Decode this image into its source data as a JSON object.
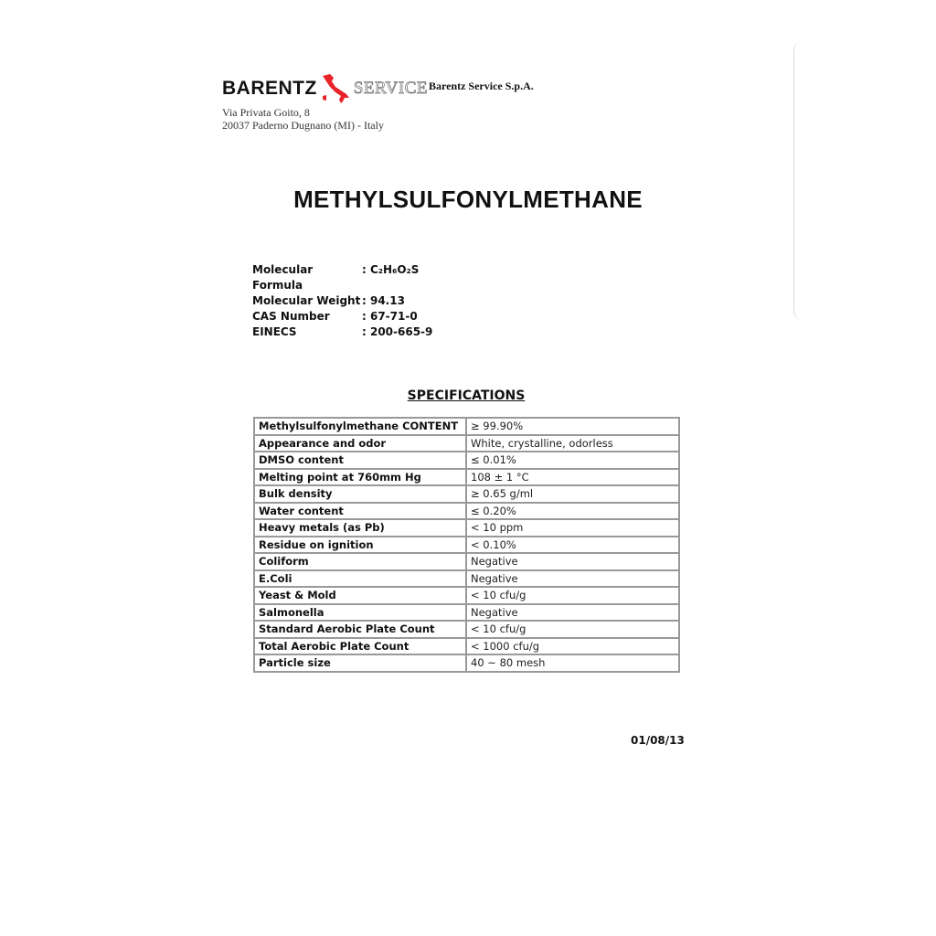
{
  "header": {
    "logo_text_left": "BARENTZ",
    "logo_text_right": "SERVICE",
    "company": "Barentz Service S.p.A.",
    "address_line1": "Via Privata Goito, 8",
    "address_line2": "20037 Paderno Dugnano (MI) - Italy",
    "logo_color": "#e8232a"
  },
  "title": "METHYLSULFONYLMETHANE",
  "properties": [
    {
      "label": "Molecular Formula",
      "value": ": C₂H₆O₂S"
    },
    {
      "label": "Molecular Weight",
      "value": ": 94.13"
    },
    {
      "label": "CAS Number",
      "value": ": 67-71-0"
    },
    {
      "label": "EINECS",
      "value": ": 200-665-9"
    }
  ],
  "specifications_heading": "SPECIFICATIONS",
  "specifications": [
    {
      "parameter": "Methylsulfonylmethane CONTENT",
      "value": "≥ 99.90%"
    },
    {
      "parameter": "Appearance and odor",
      "value": "White, crystalline, odorless"
    },
    {
      "parameter": "DMSO content",
      "value": "≤ 0.01%"
    },
    {
      "parameter": "Melting point at 760mm Hg",
      "value": "108 ± 1 °C"
    },
    {
      "parameter": "Bulk density",
      "value": "≥ 0.65 g/ml"
    },
    {
      "parameter": "Water content",
      "value": "≤ 0.20%"
    },
    {
      "parameter": "Heavy metals (as Pb)",
      "value": "< 10 ppm"
    },
    {
      "parameter": "Residue on ignition",
      "value": "< 0.10%"
    },
    {
      "parameter": "Coliform",
      "value": "Negative"
    },
    {
      "parameter": "E.Coli",
      "value": "Negative"
    },
    {
      "parameter": "Yeast & Mold",
      "value": "< 10 cfu/g"
    },
    {
      "parameter": "Salmonella",
      "value": "Negative"
    },
    {
      "parameter": "Standard Aerobic Plate Count",
      "value": "< 10 cfu/g"
    },
    {
      "parameter": "Total Aerobic Plate Count",
      "value": "< 1000 cfu/g"
    },
    {
      "parameter": "Particle size",
      "value": "40 ~ 80 mesh"
    }
  ],
  "date": "01/08/13"
}
